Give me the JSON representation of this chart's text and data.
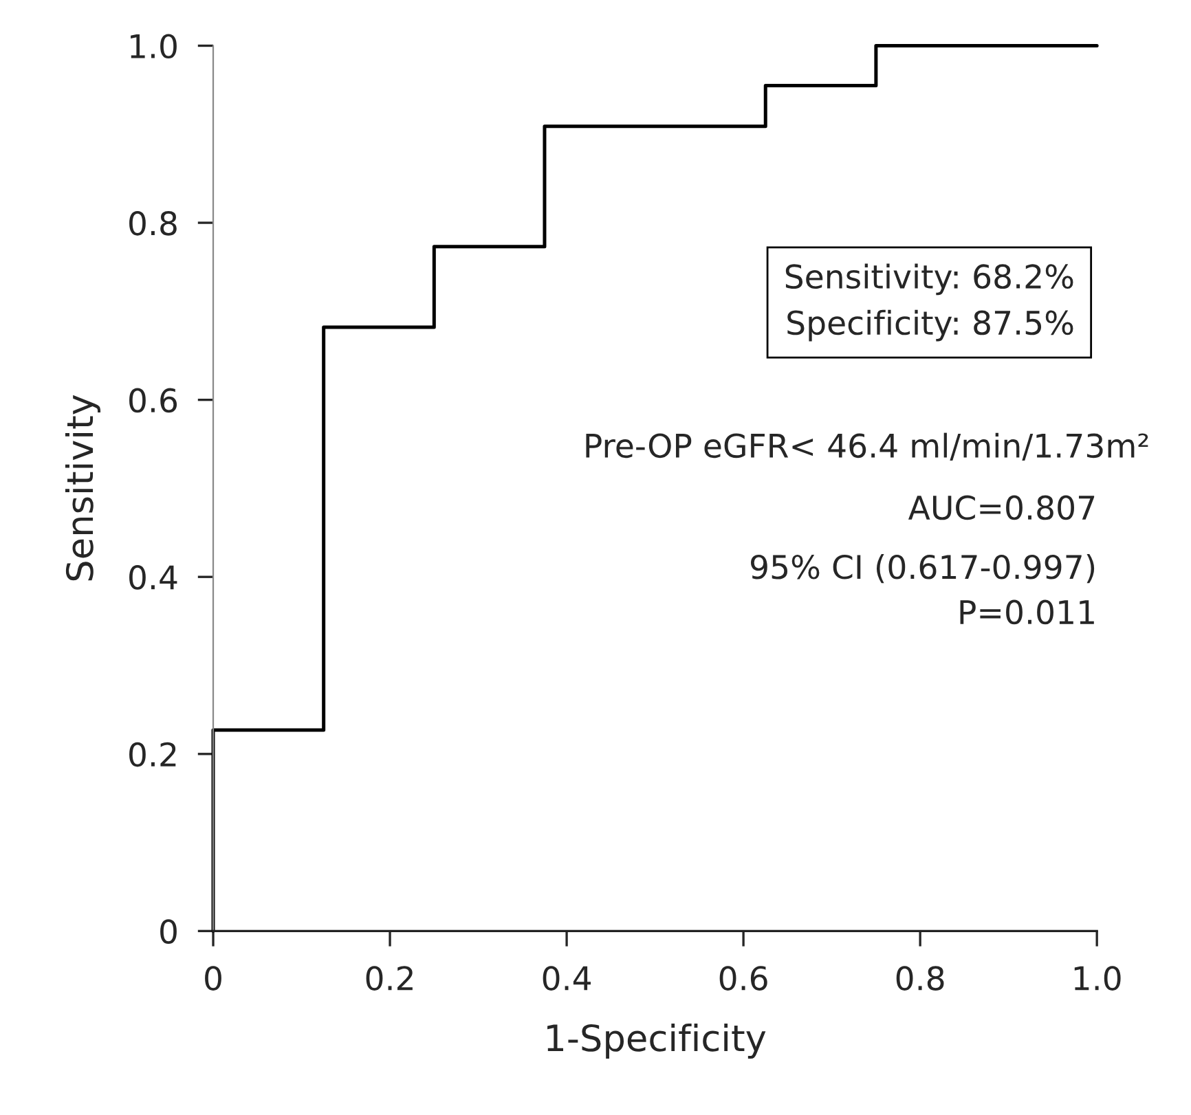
{
  "chart_data": {
    "type": "step",
    "xlabel": "1-Specificity",
    "ylabel": "Sensitivity",
    "x": [
      0,
      0,
      0.125,
      0.25,
      0.375,
      0.625,
      0.75,
      1.0
    ],
    "series": [
      {
        "color": "#000000",
        "values": [
          0,
          0.227,
          0.682,
          0.773,
          0.909,
          0.955,
          1.0,
          1.0
        ]
      }
    ],
    "xlim": [
      0,
      1
    ],
    "ylim": [
      0,
      1
    ],
    "xticks": [
      0,
      0.2,
      0.4,
      0.6,
      0.8,
      {
        "value": 1,
        "label": "1.0"
      }
    ],
    "yticks": [
      0,
      0.2,
      0.4,
      0.6,
      0.8,
      {
        "value": 1,
        "label": "1.0"
      }
    ],
    "grid": false,
    "legend": false,
    "marker": "none",
    "line_style": "solid",
    "annotations": [
      "Sensitivity: 68.2%\nSpecificity: 87.5%",
      "Pre-OP eGFR< 46.4 ml/min/1.73m²",
      "AUC=0.807",
      "95% CI (0.617-0.997)",
      "P=0.011"
    ]
  }
}
